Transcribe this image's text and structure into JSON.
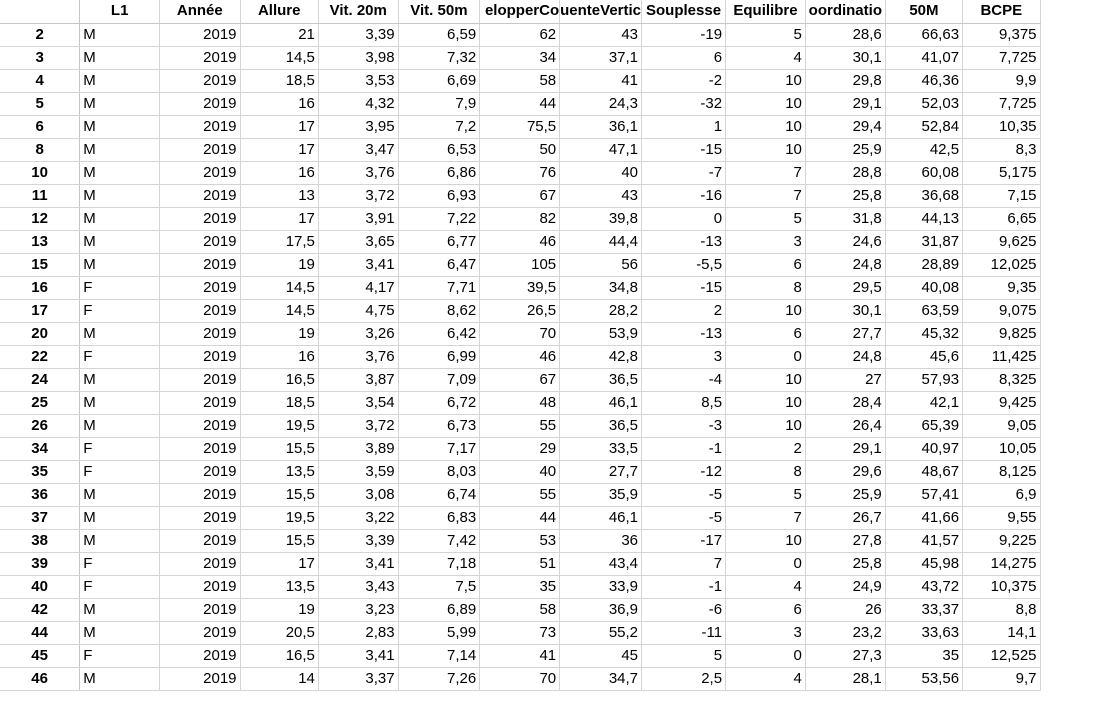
{
  "headers": [
    "",
    "L1",
    "Année",
    "Allure",
    "Vit. 20m",
    "Vit. 50m",
    "elopperCo",
    "uenteVertic",
    "Souplesse",
    "Equilibre",
    "oordinatio",
    "50M",
    "BCPE"
  ],
  "rows": [
    [
      "2",
      "M",
      "2019",
      "21",
      "3,39",
      "6,59",
      "62",
      "43",
      "-19",
      "5",
      "28,6",
      "66,63",
      "9,375"
    ],
    [
      "3",
      "M",
      "2019",
      "14,5",
      "3,98",
      "7,32",
      "34",
      "37,1",
      "6",
      "4",
      "30,1",
      "41,07",
      "7,725"
    ],
    [
      "4",
      "M",
      "2019",
      "18,5",
      "3,53",
      "6,69",
      "58",
      "41",
      "-2",
      "10",
      "29,8",
      "46,36",
      "9,9"
    ],
    [
      "5",
      "M",
      "2019",
      "16",
      "4,32",
      "7,9",
      "44",
      "24,3",
      "-32",
      "10",
      "29,1",
      "52,03",
      "7,725"
    ],
    [
      "6",
      "M",
      "2019",
      "17",
      "3,95",
      "7,2",
      "75,5",
      "36,1",
      "1",
      "10",
      "29,4",
      "52,84",
      "10,35"
    ],
    [
      "8",
      "M",
      "2019",
      "17",
      "3,47",
      "6,53",
      "50",
      "47,1",
      "-15",
      "10",
      "25,9",
      "42,5",
      "8,3"
    ],
    [
      "10",
      "M",
      "2019",
      "16",
      "3,76",
      "6,86",
      "76",
      "40",
      "-7",
      "7",
      "28,8",
      "60,08",
      "5,175"
    ],
    [
      "11",
      "M",
      "2019",
      "13",
      "3,72",
      "6,93",
      "67",
      "43",
      "-16",
      "7",
      "25,8",
      "36,68",
      "7,15"
    ],
    [
      "12",
      "M",
      "2019",
      "17",
      "3,91",
      "7,22",
      "82",
      "39,8",
      "0",
      "5",
      "31,8",
      "44,13",
      "6,65"
    ],
    [
      "13",
      "M",
      "2019",
      "17,5",
      "3,65",
      "6,77",
      "46",
      "44,4",
      "-13",
      "3",
      "24,6",
      "31,87",
      "9,625"
    ],
    [
      "15",
      "M",
      "2019",
      "19",
      "3,41",
      "6,47",
      "105",
      "56",
      "-5,5",
      "6",
      "24,8",
      "28,89",
      "12,025"
    ],
    [
      "16",
      "F",
      "2019",
      "14,5",
      "4,17",
      "7,71",
      "39,5",
      "34,8",
      "-15",
      "8",
      "29,5",
      "40,08",
      "9,35"
    ],
    [
      "17",
      "F",
      "2019",
      "14,5",
      "4,75",
      "8,62",
      "26,5",
      "28,2",
      "2",
      "10",
      "30,1",
      "63,59",
      "9,075"
    ],
    [
      "20",
      "M",
      "2019",
      "19",
      "3,26",
      "6,42",
      "70",
      "53,9",
      "-13",
      "6",
      "27,7",
      "45,32",
      "9,825"
    ],
    [
      "22",
      "F",
      "2019",
      "16",
      "3,76",
      "6,99",
      "46",
      "42,8",
      "3",
      "0",
      "24,8",
      "45,6",
      "11,425"
    ],
    [
      "24",
      "M",
      "2019",
      "16,5",
      "3,87",
      "7,09",
      "67",
      "36,5",
      "-4",
      "10",
      "27",
      "57,93",
      "8,325"
    ],
    [
      "25",
      "M",
      "2019",
      "18,5",
      "3,54",
      "6,72",
      "48",
      "46,1",
      "8,5",
      "10",
      "28,4",
      "42,1",
      "9,425"
    ],
    [
      "26",
      "M",
      "2019",
      "19,5",
      "3,72",
      "6,73",
      "55",
      "36,5",
      "-3",
      "10",
      "26,4",
      "65,39",
      "9,05"
    ],
    [
      "34",
      "F",
      "2019",
      "15,5",
      "3,89",
      "7,17",
      "29",
      "33,5",
      "-1",
      "2",
      "29,1",
      "40,97",
      "10,05"
    ],
    [
      "35",
      "F",
      "2019",
      "13,5",
      "3,59",
      "8,03",
      "40",
      "27,7",
      "-12",
      "8",
      "29,6",
      "48,67",
      "8,125"
    ],
    [
      "36",
      "M",
      "2019",
      "15,5",
      "3,08",
      "6,74",
      "55",
      "35,9",
      "-5",
      "5",
      "25,9",
      "57,41",
      "6,9"
    ],
    [
      "37",
      "M",
      "2019",
      "19,5",
      "3,22",
      "6,83",
      "44",
      "46,1",
      "-5",
      "7",
      "26,7",
      "41,66",
      "9,55"
    ],
    [
      "38",
      "M",
      "2019",
      "15,5",
      "3,39",
      "7,42",
      "53",
      "36",
      "-17",
      "10",
      "27,8",
      "41,57",
      "9,225"
    ],
    [
      "39",
      "F",
      "2019",
      "17",
      "3,41",
      "7,18",
      "51",
      "43,4",
      "7",
      "0",
      "25,8",
      "45,98",
      "14,275"
    ],
    [
      "40",
      "F",
      "2019",
      "13,5",
      "3,43",
      "7,5",
      "35",
      "33,9",
      "-1",
      "4",
      "24,9",
      "43,72",
      "10,375"
    ],
    [
      "42",
      "M",
      "2019",
      "19",
      "3,23",
      "6,89",
      "58",
      "36,9",
      "-6",
      "6",
      "26",
      "33,37",
      "8,8"
    ],
    [
      "44",
      "M",
      "2019",
      "20,5",
      "2,83",
      "5,99",
      "73",
      "55,2",
      "-11",
      "3",
      "23,2",
      "33,63",
      "14,1"
    ],
    [
      "45",
      "F",
      "2019",
      "16,5",
      "3,41",
      "7,14",
      "41",
      "45",
      "5",
      "0",
      "27,3",
      "35",
      "12,525"
    ],
    [
      "46",
      "M",
      "2019",
      "14",
      "3,37",
      "7,26",
      "70",
      "34,7",
      "2,5",
      "4",
      "28,1",
      "53,56",
      "9,7"
    ]
  ]
}
